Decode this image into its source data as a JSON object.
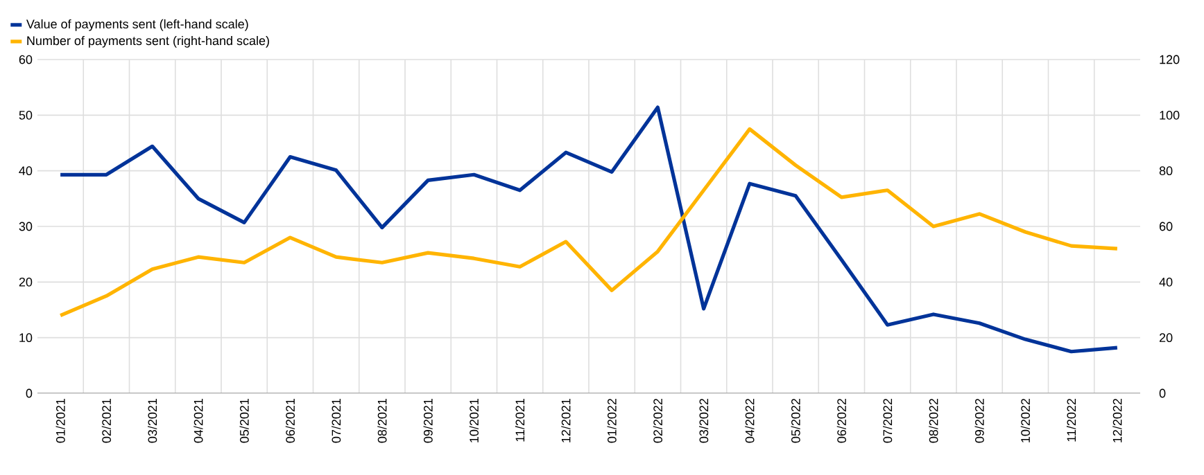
{
  "chart_data": {
    "type": "line",
    "categories": [
      "01/2021",
      "02/2021",
      "03/2021",
      "04/2021",
      "05/2021",
      "06/2021",
      "07/2021",
      "08/2021",
      "09/2021",
      "10/2021",
      "11/2021",
      "12/2021",
      "01/2022",
      "02/2022",
      "03/2022",
      "04/2022",
      "05/2022",
      "06/2022",
      "07/2022",
      "08/2022",
      "09/2022",
      "10/2022",
      "11/2022",
      "12/2022"
    ],
    "series": [
      {
        "name": "Value of payments sent (left-hand scale)",
        "color": "#003399",
        "values": [
          39.3,
          39.3,
          44.4,
          35,
          30.7,
          42.5,
          40.1,
          29.8,
          38.3,
          39.3,
          36.5,
          43.3,
          39.8,
          51.4,
          15.2,
          37.7,
          35.5,
          24,
          12.3,
          14.2,
          12.6,
          9.7,
          7.5,
          8.2
        ]
      },
      {
        "name": "Number of payments sent (right-hand scale)",
        "color": "#ffb400",
        "axis": "y2",
        "values": [
          28,
          35,
          44.6,
          49,
          47,
          56,
          49,
          47,
          50.5,
          48.5,
          45.5,
          54.5,
          37,
          51,
          73,
          95,
          82,
          70.5,
          73,
          60,
          64.5,
          58,
          53,
          52
        ]
      }
    ],
    "ylim": [
      0,
      60
    ],
    "yticks": [
      0,
      10,
      20,
      30,
      40,
      50,
      60
    ],
    "y2lim": [
      0,
      120
    ],
    "y2ticks": [
      0,
      20,
      40,
      60,
      80,
      100,
      120
    ],
    "grid": true,
    "legend": "top left",
    "line_style": "solid",
    "marker": "none"
  }
}
